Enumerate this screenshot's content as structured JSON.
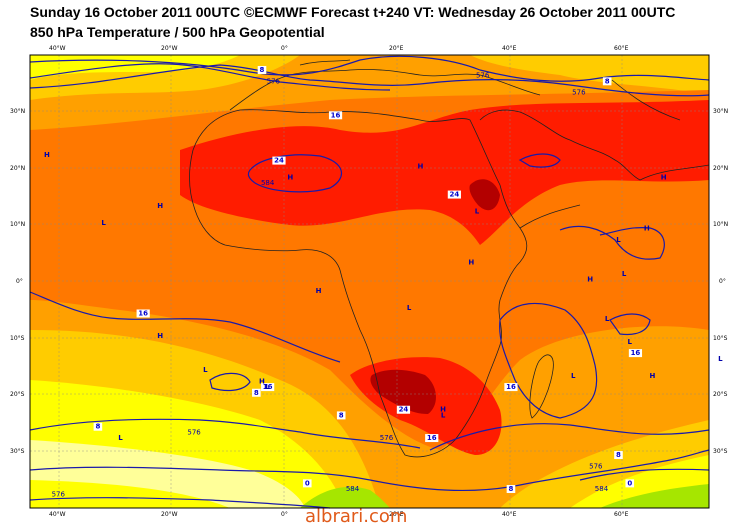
{
  "title_line1": "Sunday 16 October 2011 00UTC ©ECMWF Forecast t+240 VT: Wednesday 26 October 2011 00UTC",
  "title_line2": "850 hPa Temperature / 500 hPa Geopotential",
  "lon_labels": [
    "40°W",
    "20°W",
    "0°",
    "20°E",
    "40°E",
    "60°E"
  ],
  "lat_labels": [
    "30°N",
    "20°N",
    "10°N",
    "0°",
    "10°S",
    "20°S",
    "30°S"
  ],
  "colors": {
    "t28": "#b30000",
    "t24": "#ff1c00",
    "t20": "#ff7800",
    "t16": "#ffa000",
    "t12": "#ffcc00",
    "t8": "#ffff00",
    "t4": "#ffff99",
    "t0": "#a6e600",
    "geo": "#1a1aaa",
    "coast": "#222222",
    "grid": "#888888"
  },
  "temperature_labels": [
    {
      "text": "24",
      "lat": 21,
      "lon": -1
    },
    {
      "text": "24",
      "lat": 15,
      "lon": 30
    },
    {
      "text": "16",
      "lat": 29,
      "lon": 9
    },
    {
      "text": "16",
      "lat": -6,
      "lon": -25
    },
    {
      "text": "16",
      "lat": -19,
      "lon": -3
    },
    {
      "text": "16",
      "lat": -19,
      "lon": 40
    },
    {
      "text": "16",
      "lat": -13,
      "lon": 62
    },
    {
      "text": "16",
      "lat": -28,
      "lon": 26
    },
    {
      "text": "24",
      "lat": -23,
      "lon": 21
    },
    {
      "text": "8",
      "lat": -20,
      "lon": -5
    },
    {
      "text": "8",
      "lat": -24,
      "lon": 10
    },
    {
      "text": "8",
      "lat": -26,
      "lon": -33
    },
    {
      "text": "8",
      "lat": -31,
      "lon": 59
    },
    {
      "text": "8",
      "lat": -37,
      "lon": 40
    },
    {
      "text": "8",
      "lat": 37,
      "lon": -4
    },
    {
      "text": "8",
      "lat": 35,
      "lon": 57
    },
    {
      "text": "0",
      "lat": -36,
      "lon": 4
    },
    {
      "text": "0",
      "lat": -36,
      "lon": 61
    }
  ],
  "geopotential_labels": [
    {
      "text": "576",
      "lat": 35,
      "lon": -2
    },
    {
      "text": "576",
      "lat": 36,
      "lon": 35
    },
    {
      "text": "576",
      "lat": 33,
      "lon": 52
    },
    {
      "text": "584",
      "lat": 17,
      "lon": -3
    },
    {
      "text": "576",
      "lat": -27,
      "lon": -16
    },
    {
      "text": "576",
      "lat": -28,
      "lon": 18
    },
    {
      "text": "576",
      "lat": -33,
      "lon": 55
    },
    {
      "text": "576",
      "lat": -38,
      "lon": -40
    },
    {
      "text": "584",
      "lat": -37,
      "lon": 12
    },
    {
      "text": "584",
      "lat": -37,
      "lon": 56
    }
  ],
  "pressure_centres": [
    {
      "type": "H",
      "lat": 22,
      "lon": -42
    },
    {
      "type": "H",
      "lat": 13,
      "lon": -22
    },
    {
      "type": "L",
      "lat": 10,
      "lon": -32
    },
    {
      "type": "H",
      "lat": 20,
      "lon": 24
    },
    {
      "type": "H",
      "lat": 18,
      "lon": 1
    },
    {
      "type": "L",
      "lat": 12,
      "lon": 34
    },
    {
      "type": "H",
      "lat": 18,
      "lon": 67
    },
    {
      "type": "H",
      "lat": 3,
      "lon": 33
    },
    {
      "type": "L",
      "lat": 7,
      "lon": 59
    },
    {
      "type": "H",
      "lat": 9,
      "lon": 64
    },
    {
      "type": "H",
      "lat": 0,
      "lon": 54
    },
    {
      "type": "L",
      "lat": 1,
      "lon": 60
    },
    {
      "type": "H",
      "lat": -2,
      "lon": 6
    },
    {
      "type": "L",
      "lat": -5,
      "lon": 22
    },
    {
      "type": "L",
      "lat": -7,
      "lon": 57
    },
    {
      "type": "L",
      "lat": -11,
      "lon": 61
    },
    {
      "type": "H",
      "lat": -10,
      "lon": -22
    },
    {
      "type": "L",
      "lat": -16,
      "lon": -14
    },
    {
      "type": "L",
      "lat": -19,
      "lon": -3
    },
    {
      "type": "H",
      "lat": -18,
      "lon": -4
    },
    {
      "type": "L",
      "lat": -17,
      "lon": 51
    },
    {
      "type": "H",
      "lat": -17,
      "lon": 65
    },
    {
      "type": "L",
      "lat": -24,
      "lon": 28
    },
    {
      "type": "H",
      "lat": -23,
      "lon": 28
    },
    {
      "type": "L",
      "lat": -28,
      "lon": -29
    },
    {
      "type": "L",
      "lat": -14,
      "lon": 77
    }
  ],
  "watermark": "albrari.com"
}
